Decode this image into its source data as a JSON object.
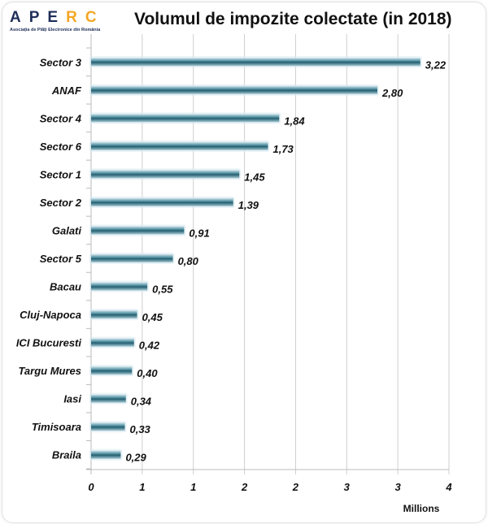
{
  "logo": {
    "letters": [
      "A",
      "P",
      "E",
      "R",
      "C"
    ],
    "subtitle": "Asociația de Plăți Electronice din România",
    "colors": {
      "dark": "#1f2f5a",
      "accent": "#f5a623"
    }
  },
  "chart_data": {
    "type": "bar",
    "orientation": "horizontal",
    "title": "Volumul de impozite colectate (in 2018)",
    "categories": [
      "Sector 3",
      "ANAF",
      "Sector 4",
      "Sector 6",
      "Sector 1",
      "Sector 2",
      "Galati",
      "Sector 5",
      "Bacau",
      "Cluj-Napoca",
      "ICI Bucuresti",
      "Targu Mures",
      "Iasi",
      "Timisoara",
      "Braila"
    ],
    "values": [
      3.22,
      2.8,
      1.84,
      1.73,
      1.45,
      1.39,
      0.91,
      0.8,
      0.55,
      0.45,
      0.42,
      0.4,
      0.34,
      0.33,
      0.29
    ],
    "value_labels": [
      "3,22",
      "2,80",
      "1,84",
      "1,73",
      "1,45",
      "1,39",
      "0,91",
      "0,80",
      "0,55",
      "0,45",
      "0,42",
      "0,40",
      "0,34",
      "0,33",
      "0,29"
    ],
    "xlim": [
      0,
      3.5
    ],
    "xticks": [
      0,
      0.5,
      1,
      1.5,
      2,
      2.5,
      3,
      3.5
    ],
    "xtick_labels": [
      "0",
      "1",
      "1",
      "2",
      "2",
      "3",
      "3",
      "4"
    ],
    "xlabel": "Millions",
    "ylabel": "",
    "grid": "vertical",
    "bar_color": "#2e6f80"
  }
}
